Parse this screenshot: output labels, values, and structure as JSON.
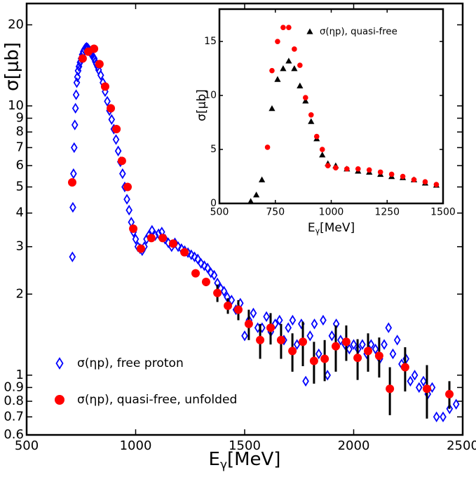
{
  "chart_data": [
    {
      "type": "scatter",
      "ylog": true,
      "legend": "lower left",
      "xlabel": {
        "main": "E",
        "sub": "γ",
        "unit": "[MeV]"
      },
      "ylabel": "σ[μb]",
      "xlim": [
        500,
        2500
      ],
      "ylim": [
        0.6,
        24
      ],
      "xticks": [
        500,
        1000,
        1500,
        2000,
        2500
      ],
      "yticks": [
        0.6,
        0.7,
        0.8,
        0.9,
        1,
        2,
        3,
        4,
        5,
        6,
        7,
        8,
        9,
        10,
        20
      ],
      "series": [
        {
          "name": "σ(ηp), free proton",
          "color": "#0000ff",
          "marker": "diamond-open",
          "x": [
            710,
            712,
            715,
            718,
            721,
            724,
            727,
            730,
            733,
            736,
            740,
            745,
            750,
            755,
            760,
            765,
            770,
            775,
            780,
            785,
            790,
            795,
            800,
            805,
            810,
            815,
            820,
            825,
            830,
            840,
            850,
            860,
            870,
            880,
            890,
            900,
            910,
            920,
            930,
            940,
            950,
            960,
            970,
            980,
            990,
            1000,
            1010,
            1020,
            1030,
            1040,
            1050,
            1060,
            1075,
            1090,
            1105,
            1120,
            1135,
            1150,
            1165,
            1180,
            1195,
            1210,
            1225,
            1240,
            1255,
            1270,
            1285,
            1300,
            1315,
            1330,
            1345,
            1360,
            1375,
            1390,
            1405,
            1420,
            1440,
            1460,
            1480,
            1500,
            1520,
            1540,
            1560,
            1580,
            1600,
            1620,
            1640,
            1660,
            1680,
            1700,
            1720,
            1740,
            1760,
            1780,
            1800,
            1820,
            1840,
            1860,
            1880,
            1900,
            1920,
            1940,
            1960,
            1980,
            2000,
            2020,
            2040,
            2060,
            2080,
            2100,
            2120,
            2140,
            2160,
            2180,
            2200,
            2220,
            2240,
            2260,
            2280,
            2300,
            2320,
            2340,
            2360,
            2380,
            2410,
            2440,
            2470
          ],
          "values": [
            2.75,
            4.2,
            5.6,
            7.0,
            8.5,
            9.8,
            11,
            12.2,
            12.8,
            13.5,
            14,
            14.5,
            15,
            15.5,
            15.9,
            16.2,
            16.4,
            16.5,
            16.4,
            16.2,
            16,
            15.7,
            15.4,
            15.2,
            15,
            14.6,
            14.3,
            14,
            13.6,
            13,
            12.2,
            11.3,
            10.4,
            9.6,
            8.9,
            8.2,
            7.5,
            6.8,
            6.2,
            5.6,
            5,
            4.5,
            4.1,
            3.7,
            3.4,
            3.2,
            3,
            2.95,
            2.9,
            3,
            3.2,
            3.3,
            3.45,
            3.3,
            3.35,
            3.4,
            3.2,
            3.1,
            3,
            3.1,
            3,
            2.95,
            2.9,
            2.85,
            2.8,
            2.75,
            2.7,
            2.6,
            2.55,
            2.5,
            2.4,
            2.35,
            2.2,
            2.1,
            2.05,
            1.95,
            1.9,
            1.75,
            1.85,
            1.4,
            1.6,
            1.7,
            1.5,
            1.5,
            1.65,
            1.45,
            1.55,
            1.6,
            1.35,
            1.5,
            1.6,
            1.3,
            1.55,
            0.95,
            1.4,
            1.55,
            1.2,
            1.6,
            1.0,
            1.4,
            1.55,
            1.35,
            1.3,
            1.25,
            1.3,
            1.25,
            1.3,
            1.2,
            1.3,
            1.25,
            1.15,
            1.3,
            1.5,
            1.2,
            1.35,
            1.1,
            1.15,
            0.95,
            1.0,
            0.9,
            0.95,
            0.85,
            0.9,
            0.7,
            0.7,
            0.75,
            0.78
          ]
        },
        {
          "name": "σ(ηp), quasi-free, unfolded",
          "color": "#ff0000",
          "marker": "circle",
          "x": [
            709,
            757,
            783,
            809,
            834,
            860,
            886,
            912,
            937,
            963,
            989,
            1024,
            1072,
            1124,
            1172,
            1224,
            1275,
            1323,
            1375,
            1423,
            1471,
            1519,
            1571,
            1619,
            1667,
            1719,
            1767,
            1818,
            1867,
            1918,
            1966,
            2018,
            2066,
            2117,
            2166,
            2236,
            2336,
            2439
          ],
          "values": [
            5.2,
            15,
            15.9,
            16.3,
            14.3,
            11.8,
            9.8,
            8.2,
            6.25,
            5.0,
            3.5,
            2.95,
            3.23,
            3.23,
            3.08,
            2.86,
            2.39,
            2.22,
            2.02,
            1.81,
            1.75,
            1.55,
            1.35,
            1.5,
            1.35,
            1.23,
            1.33,
            1.13,
            1.15,
            1.28,
            1.33,
            1.16,
            1.23,
            1.18,
            0.89,
            1.07,
            0.89,
            0.85
          ],
          "errors": [
            null,
            null,
            null,
            null,
            null,
            null,
            null,
            null,
            null,
            null,
            null,
            null,
            null,
            null,
            null,
            null,
            0.05,
            0.08,
            0.15,
            0.12,
            0.15,
            0.2,
            0.2,
            0.2,
            0.2,
            0.2,
            0.25,
            0.2,
            0.2,
            0.25,
            0.2,
            0.2,
            0.2,
            0.2,
            0.18,
            0.2,
            0.2,
            0.1
          ]
        }
      ]
    },
    {
      "type": "scatter",
      "ylog": false,
      "legend": "upper right",
      "xlabel": {
        "main": "E",
        "sub": "γ",
        "unit": "[MeV]"
      },
      "ylabel": "σ[μb]",
      "xlim": [
        500,
        1500
      ],
      "ylim": [
        0,
        18
      ],
      "xticks": [
        500,
        750,
        1000,
        1250,
        1500
      ],
      "yticks": [
        0,
        5,
        10,
        15
      ],
      "series": [
        {
          "name": "σ(ηp), quasi-free",
          "color": "#000000",
          "marker": "triangle",
          "x": [
            640,
            665,
            690,
            735,
            760,
            785,
            810,
            835,
            860,
            885,
            910,
            935,
            960,
            985,
            1020,
            1070,
            1120,
            1170,
            1220,
            1270,
            1320,
            1370,
            1420,
            1470
          ],
          "values": [
            0.2,
            0.8,
            2.2,
            8.8,
            11.5,
            12.5,
            13.2,
            12.5,
            10.9,
            9.5,
            7.6,
            6.0,
            4.5,
            3.7,
            3.5,
            3.2,
            3.0,
            2.9,
            2.7,
            2.5,
            2.4,
            2.2,
            1.9,
            1.7
          ]
        },
        {
          "color": "#ff0000",
          "marker": "circle",
          "x": [
            715,
            735,
            760,
            785,
            810,
            835,
            860,
            885,
            910,
            935,
            960,
            985,
            1020,
            1070,
            1120,
            1170,
            1220,
            1270,
            1320,
            1370,
            1420,
            1470
          ],
          "values": [
            5.2,
            12.3,
            15,
            16.3,
            16.3,
            14.3,
            12.8,
            9.8,
            8.2,
            6.2,
            5.0,
            3.5,
            3.3,
            3.2,
            3.2,
            3.1,
            2.9,
            2.7,
            2.5,
            2.2,
            2.0,
            1.75
          ]
        }
      ]
    }
  ]
}
